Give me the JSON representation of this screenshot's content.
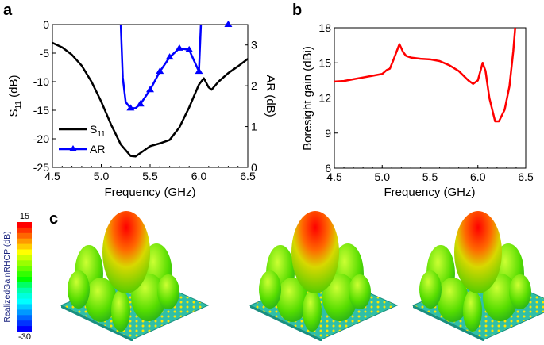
{
  "panels": {
    "a": "a",
    "b": "b",
    "c": "c"
  },
  "chart_data": [
    {
      "type": "line",
      "panel": "a",
      "xlabel": "Frequency (GHz)",
      "ylabel": {
        "main": "S",
        "sub": "11",
        "unit": " (dB)"
      },
      "y2label": "AR (dB)",
      "xlim": [
        4.5,
        6.5
      ],
      "ylim": [
        -25,
        0
      ],
      "y2lim": [
        0,
        3.5
      ],
      "xticks": [
        "4.5",
        "5.0",
        "5.5",
        "6.0",
        "6.5"
      ],
      "yticks": [
        "0",
        "-5",
        "-10",
        "-15",
        "-20",
        "-25"
      ],
      "y2ticks": [
        "0",
        "1",
        "2",
        "3"
      ],
      "legend": {
        "placement": "bottom-left",
        "s11": {
          "main": "S",
          "sub": "11"
        },
        "ar": "AR"
      },
      "series": [
        {
          "name": "S11",
          "axis": "left",
          "color": "#000000",
          "x": [
            4.5,
            4.6,
            4.7,
            4.8,
            4.9,
            5.0,
            5.1,
            5.2,
            5.3,
            5.35,
            5.4,
            5.5,
            5.6,
            5.7,
            5.8,
            5.9,
            6.0,
            6.05,
            6.1,
            6.13,
            6.2,
            6.3,
            6.4,
            6.5
          ],
          "y": [
            -3.2,
            -4,
            -5.3,
            -7.2,
            -10,
            -13.5,
            -17.5,
            -21,
            -23,
            -23.1,
            -22.5,
            -21.3,
            -20.8,
            -20.2,
            -18,
            -14.5,
            -10.5,
            -9.4,
            -11,
            -11.4,
            -10,
            -8.5,
            -7.3,
            -6
          ]
        },
        {
          "name": "AR",
          "axis": "right",
          "color": "#0000ff",
          "marker": "triangle",
          "x": [
            5.2,
            5.22,
            5.25,
            5.3,
            5.35,
            5.4,
            5.5,
            5.6,
            5.7,
            5.8,
            5.9,
            6.0,
            6.02
          ],
          "y": [
            3.5,
            2.2,
            1.6,
            1.45,
            1.45,
            1.55,
            1.9,
            2.35,
            2.7,
            2.92,
            2.88,
            2.35,
            3.5
          ],
          "markers_x": [
            5.3,
            5.4,
            5.5,
            5.6,
            5.7,
            5.8,
            5.9,
            6.0,
            6.3
          ],
          "markers_y": [
            1.45,
            1.55,
            1.9,
            2.35,
            2.7,
            2.92,
            2.88,
            2.35,
            3.5
          ]
        }
      ]
    },
    {
      "type": "line",
      "panel": "b",
      "xlabel": "Frequency (GHz)",
      "ylabel": "Boresight gain (dBi)",
      "xlim": [
        4.5,
        6.5
      ],
      "ylim": [
        6,
        18
      ],
      "xticks": [
        "4.5",
        "5.0",
        "5.5",
        "6.0",
        "6.5"
      ],
      "yticks": [
        "6",
        "9",
        "12",
        "15",
        "18"
      ],
      "series": [
        {
          "color": "#ff0000",
          "x": [
            4.5,
            4.6,
            4.7,
            4.8,
            4.9,
            5.0,
            5.05,
            5.08,
            5.12,
            5.18,
            5.22,
            5.25,
            5.3,
            5.4,
            5.5,
            5.6,
            5.7,
            5.8,
            5.9,
            5.95,
            6.0,
            6.05,
            6.08,
            6.12,
            6.18,
            6.22,
            6.28,
            6.33,
            6.37,
            6.39
          ],
          "y": [
            13.4,
            13.45,
            13.6,
            13.75,
            13.9,
            14.05,
            14.4,
            14.5,
            15.3,
            16.6,
            15.9,
            15.6,
            15.45,
            15.35,
            15.3,
            15.15,
            14.8,
            14.3,
            13.5,
            13.2,
            13.5,
            15.0,
            14.3,
            12.0,
            10.0,
            10.0,
            11.0,
            13.0,
            16.0,
            18.0
          ]
        }
      ]
    }
  ],
  "colorbar": {
    "label": "RealizedGainRHCP (dB)",
    "max": "15",
    "min": "-30",
    "colors": [
      "#ff0000",
      "#ff3300",
      "#ff6600",
      "#ff9900",
      "#ffcc00",
      "#ffff00",
      "#ccff00",
      "#99ff00",
      "#66ff00",
      "#33ff00",
      "#00ff00",
      "#00ff66",
      "#00ffaa",
      "#00ffdd",
      "#00ffff",
      "#00ccff",
      "#0099ff",
      "#0066ff",
      "#0033ff",
      "#0000ff"
    ]
  },
  "patterns_count_note": null
}
